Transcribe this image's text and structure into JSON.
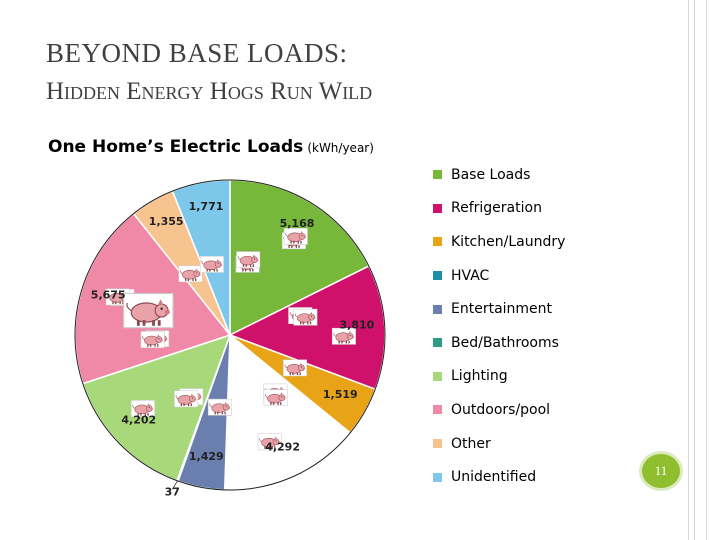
{
  "slide": {
    "title_line1": "BEYOND BASE LOADS:",
    "title_line2": "Hidden Energy Hogs Run Wild",
    "page_number": "11"
  },
  "chart_data": {
    "type": "pie",
    "title": "One Home’s Electric Loads",
    "unit": "(kWh/year)",
    "legend_position": "right",
    "slices": [
      {
        "name": "Base Loads",
        "value": 5168,
        "label": "5,168",
        "color": "#77b83a"
      },
      {
        "name": "Refrigeration",
        "value": 3810,
        "label": "3,810",
        "color": "#d0116c"
      },
      {
        "name": "Kitchen/Laundry",
        "value": 1519,
        "label": "1,519",
        "color": "#e8a317"
      },
      {
        "name": "HVAC",
        "value": 4292,
        "label": "4,292",
        "color": "#ffffff"
      },
      {
        "name": "Entertainment",
        "value": 1429,
        "label": "1,429",
        "color": "#6b7fae"
      },
      {
        "name": "Bed/Bathrooms",
        "value": 37,
        "label": "37",
        "color": "#2e9b85"
      },
      {
        "name": "Lighting",
        "value": 4202,
        "label": "4,202",
        "color": "#a7d97a"
      },
      {
        "name": "Outdoors/pool",
        "value": 5675,
        "label": "5,675",
        "color": "#f088a8"
      },
      {
        "name": "Other",
        "value": 1355,
        "label": "1,355",
        "color": "#f7c48f"
      },
      {
        "name": "Unidentified",
        "value": 1771,
        "label": "1,771",
        "color": "#7dc7ea"
      }
    ],
    "legend_swatch_colors": [
      "#77b83a",
      "#d0116c",
      "#e8a317",
      "#1f8fa8",
      "#6b7fae",
      "#2e9b85",
      "#a7d97a",
      "#f088a8",
      "#f7c48f",
      "#7dc7ea"
    ],
    "pig_icon": "pig-icon"
  }
}
